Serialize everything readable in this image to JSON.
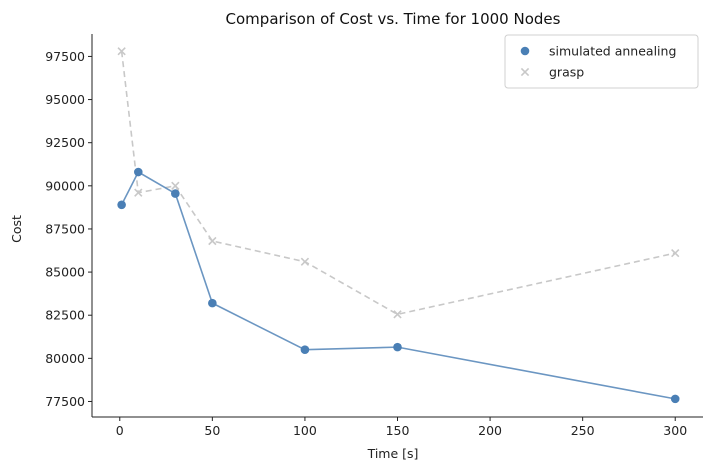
{
  "chart_data": {
    "type": "line",
    "title": "Comparison of Cost vs. Time for 1000 Nodes",
    "xlabel": "Time [s]",
    "ylabel": "Cost",
    "xlim": [
      -15,
      315
    ],
    "ylim": [
      76600,
      98800
    ],
    "xticks": [
      0,
      50,
      100,
      150,
      200,
      250,
      300
    ],
    "xtick_labels": [
      "0",
      "50",
      "100",
      "150",
      "200",
      "250",
      "300"
    ],
    "yticks": [
      77500,
      80000,
      82500,
      85000,
      87500,
      90000,
      92500,
      95000,
      97500
    ],
    "ytick_labels": [
      "77500",
      "80000",
      "82500",
      "85000",
      "87500",
      "90000",
      "92500",
      "95000",
      "97500"
    ],
    "grid": false,
    "legend_position": "top-right",
    "series": [
      {
        "name": "simulated annealing",
        "marker": "circle",
        "line_style": "solid",
        "color": "#4a7fb5",
        "x": [
          1,
          10,
          30,
          50,
          100,
          150,
          300
        ],
        "y": [
          88900,
          90800,
          89550,
          83200,
          80500,
          80650,
          77650
        ]
      },
      {
        "name": "grasp",
        "marker": "x",
        "line_style": "dashed",
        "color": "#c8c8c8",
        "x": [
          1,
          10,
          30,
          50,
          100,
          150,
          300
        ],
        "y": [
          97800,
          89600,
          90000,
          86800,
          85600,
          82550,
          86100
        ]
      }
    ]
  }
}
